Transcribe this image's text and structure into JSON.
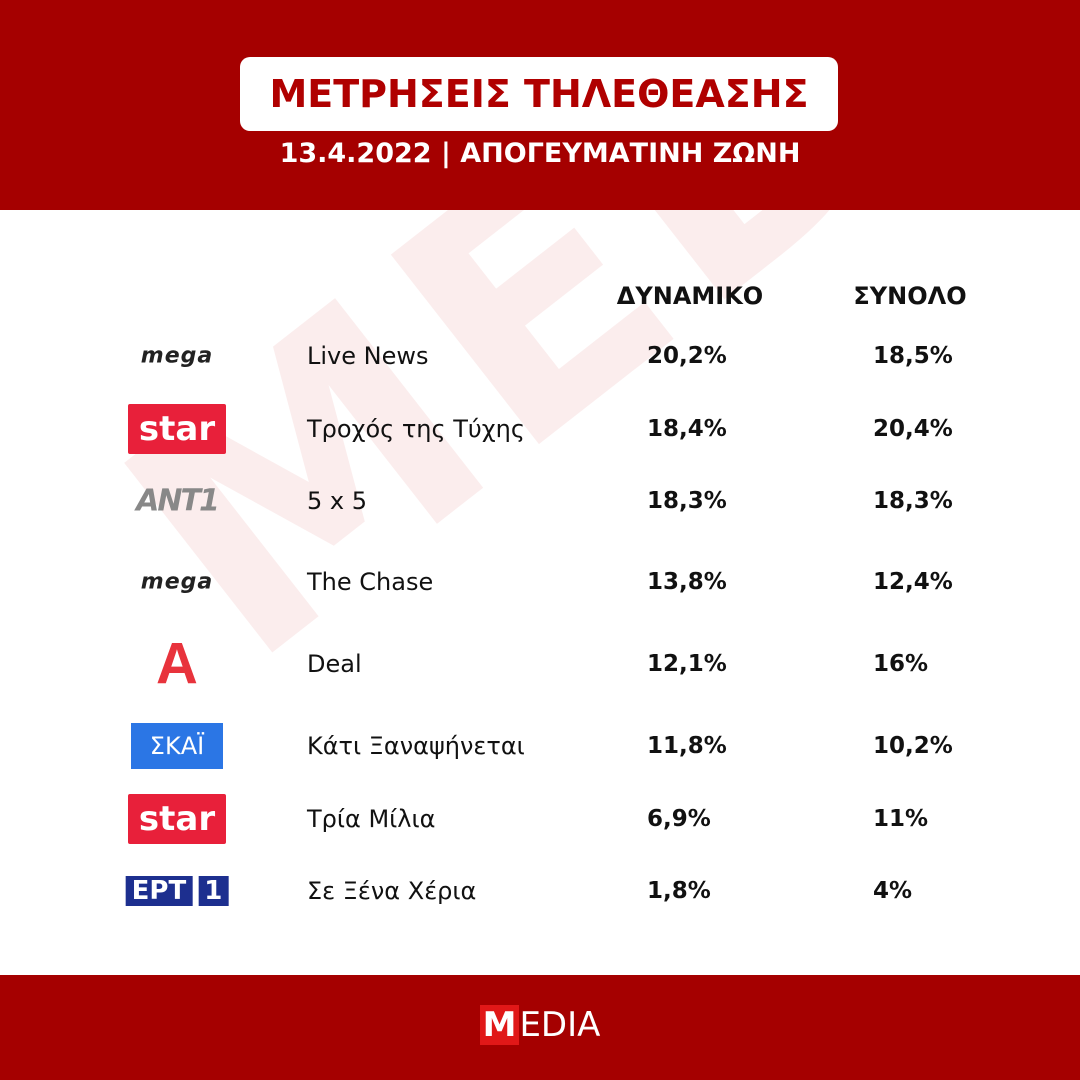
{
  "header": {
    "title": "ΜΕΤΡΗΣΕΙΣ ΤΗΛΕΘΕΑΣΗΣ",
    "subtitle": "13.4.2022 | ΑΠΟΓΕΥΜΑΤΙΝΗ ΖΩΝΗ"
  },
  "watermark": "MEDIA",
  "table": {
    "columns": [
      "ΔΥΝΑΜΙΚΟ",
      "ΣΥΝΟΛΟ"
    ],
    "rows": [
      {
        "channel": {
          "style": "mega",
          "text": "mega"
        },
        "show": "Live News",
        "values": [
          "20,2%",
          "18,5%"
        ]
      },
      {
        "channel": {
          "style": "star",
          "text": "star"
        },
        "show": "Τροχός της Τύχης",
        "values": [
          "18,4%",
          "20,4%"
        ]
      },
      {
        "channel": {
          "style": "ant",
          "text": "ANT1"
        },
        "show": "5 x 5",
        "values": [
          "18,3%",
          "18,3%"
        ]
      },
      {
        "channel": {
          "style": "mega",
          "text": "mega"
        },
        "show": "The Chase",
        "values": [
          "13,8%",
          "12,4%"
        ]
      },
      {
        "channel": {
          "style": "alpha",
          "text": "A"
        },
        "show": "Deal",
        "values": [
          "12,1%",
          "16%"
        ]
      },
      {
        "channel": {
          "style": "skai",
          "text": "ΣΚΑΪ"
        },
        "show": "Κάτι Ξαναψήνεται",
        "values": [
          "11,8%",
          "10,2%"
        ]
      },
      {
        "channel": {
          "style": "star",
          "text": "star"
        },
        "show": "Τρία Μίλια",
        "values": [
          "6,9%",
          "11%"
        ]
      },
      {
        "channel": {
          "style": "ert",
          "text": "ΕΡΤ",
          "number": "1"
        },
        "show": "Σε Ξένα Χέρια",
        "values": [
          "1,8%",
          "4%"
        ]
      }
    ]
  },
  "footer": {
    "logo_mark": "M",
    "logo_text": "EDIA"
  }
}
